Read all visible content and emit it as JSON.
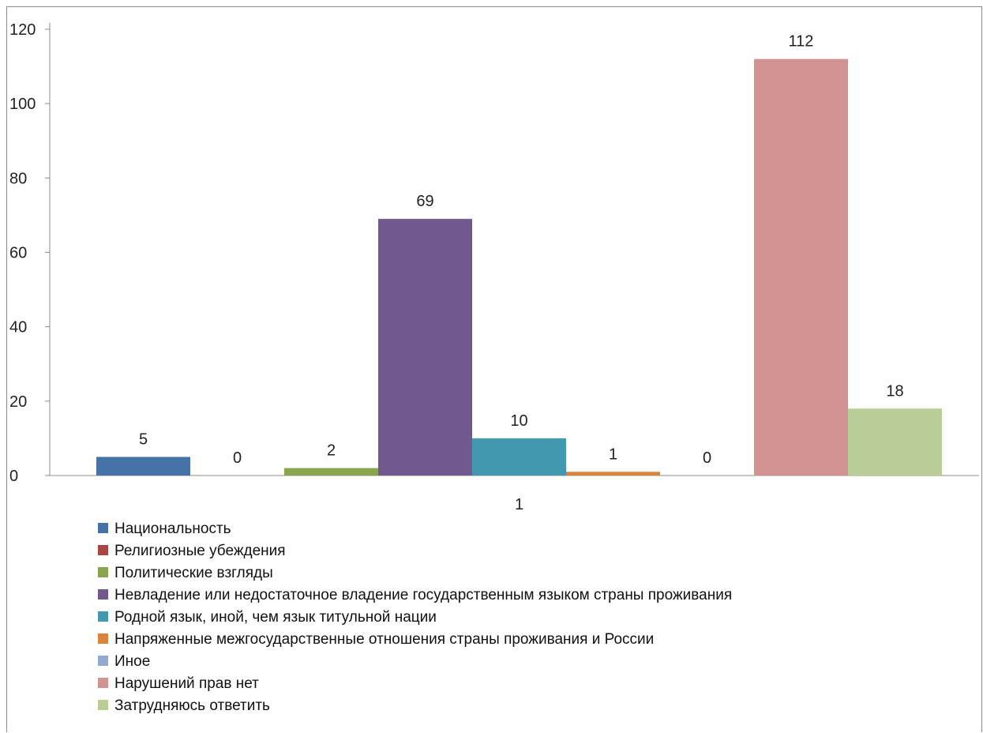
{
  "chart_data": {
    "type": "bar",
    "categories": [
      "1"
    ],
    "ylim": [
      0,
      120
    ],
    "yticks": [
      0,
      20,
      40,
      60,
      80,
      100,
      120
    ],
    "grid": false,
    "legend_position": "bottom",
    "series": [
      {
        "name": "Национальность",
        "values": [
          5
        ],
        "color": "#4572a7"
      },
      {
        "name": "Религиозные убеждения",
        "values": [
          0
        ],
        "color": "#aa4643"
      },
      {
        "name": "Политические взгляды",
        "values": [
          2
        ],
        "color": "#89a54e"
      },
      {
        "name": "Невладение или недостаточное владение государственным языком страны проживания",
        "values": [
          69
        ],
        "color": "#71588f"
      },
      {
        "name": "Родной язык, иной, чем язык титульной нации",
        "values": [
          10
        ],
        "color": "#4198af"
      },
      {
        "name": "Напряженные межгосударственные отношения страны проживания и России",
        "values": [
          1
        ],
        "color": "#db843d"
      },
      {
        "name": "Иное",
        "values": [
          0
        ],
        "color": "#93a9cf"
      },
      {
        "name": "Нарушений прав нет",
        "values": [
          112
        ],
        "color": "#d19392"
      },
      {
        "name": "Затрудняюсь ответить",
        "values": [
          18
        ],
        "color": "#b9cd96"
      }
    ]
  }
}
